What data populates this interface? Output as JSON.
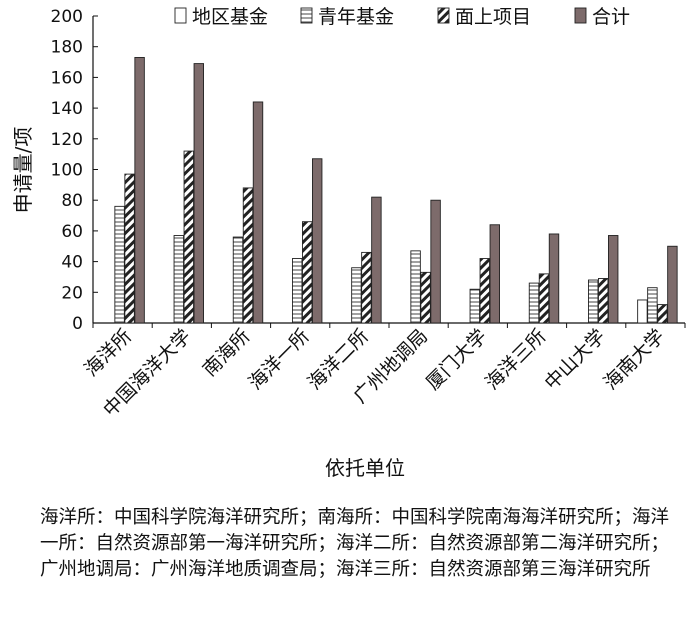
{
  "chart_data": {
    "type": "bar",
    "xlabel": "依托单位",
    "ylabel": "申请量/项",
    "ylim": [
      0,
      200
    ],
    "yticks": [
      0,
      20,
      40,
      60,
      80,
      100,
      120,
      140,
      160,
      180,
      200
    ],
    "legend_position": "top",
    "categories": [
      "海洋所",
      "中国海洋大学",
      "南海所",
      "海洋一所",
      "海洋二所",
      "广州地调局",
      "厦门大学",
      "海洋三所",
      "中山大学",
      "海南大学"
    ],
    "series": [
      {
        "name": "地区基金",
        "pattern": "white",
        "values": [
          0,
          0,
          0,
          0,
          0,
          0,
          0,
          0,
          0,
          15
        ]
      },
      {
        "name": "青年基金",
        "pattern": "horizontal-lines",
        "values": [
          76,
          57,
          56,
          42,
          36,
          47,
          22,
          26,
          28,
          23
        ]
      },
      {
        "name": "面上项目",
        "pattern": "diagonal-hatch",
        "values": [
          97,
          112,
          88,
          66,
          46,
          33,
          42,
          32,
          29,
          12
        ]
      },
      {
        "name": "合计",
        "pattern": "solid",
        "color": "#7d6b6b",
        "values": [
          173,
          169,
          144,
          107,
          82,
          80,
          64,
          58,
          57,
          50
        ]
      }
    ]
  },
  "footnote": "海洋所：中国科学院海洋研究所；南海所：中国科学院南海海洋研究所；海洋一所：自然资源部第一海洋研究所；海洋二所：自然资源部第二海洋研究所；广州地调局：广州海洋地质调查局；海洋三所：自然资源部第三海洋研究所"
}
